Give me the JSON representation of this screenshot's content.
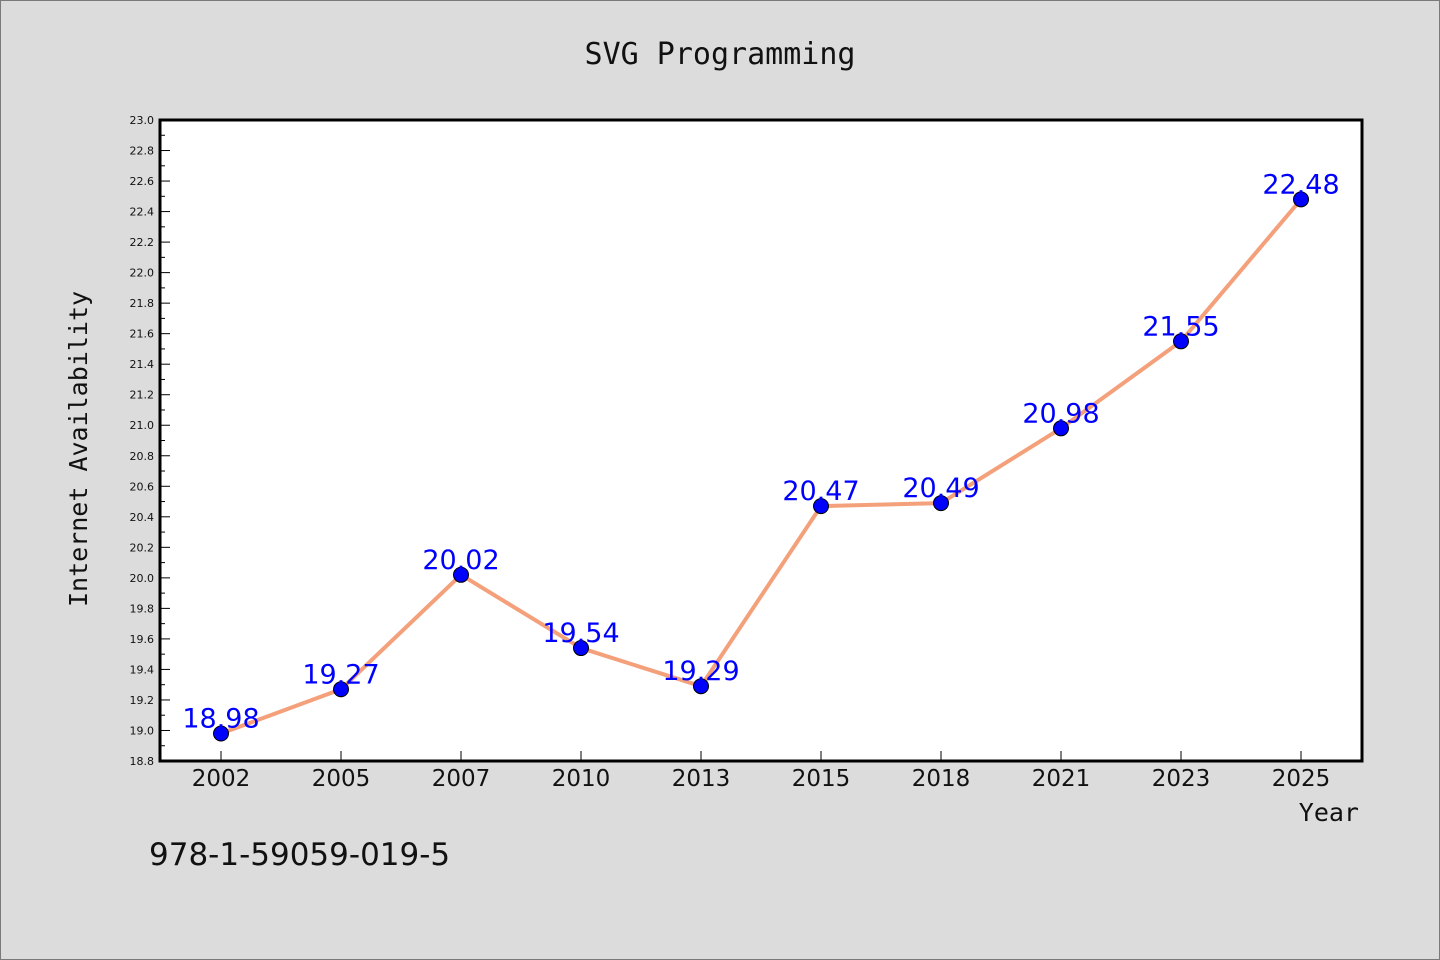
{
  "chart_data": {
    "type": "line",
    "title": "SVG Programming",
    "xlabel": "Year",
    "ylabel": "Internet Availability",
    "categories": [
      "2002",
      "2005",
      "2007",
      "2010",
      "2013",
      "2015",
      "2018",
      "2021",
      "2023",
      "2025"
    ],
    "values": [
      18.98,
      19.27,
      20.02,
      19.54,
      19.29,
      20.47,
      20.49,
      20.98,
      21.55,
      22.48
    ],
    "data_labels": [
      "18.98",
      "19.27",
      "20.02",
      "19.54",
      "19.29",
      "20.47",
      "20.49",
      "20.98",
      "21.55",
      "22.48"
    ],
    "ylim": [
      18.8,
      23.0
    ],
    "yticks": [
      "18.8",
      "19.0",
      "19.2",
      "19.4",
      "19.6",
      "19.8",
      "20.0",
      "20.2",
      "20.4",
      "20.6",
      "20.8",
      "21.0",
      "21.2",
      "21.4",
      "21.6",
      "21.8",
      "22.0",
      "22.2",
      "22.4",
      "22.6",
      "22.8",
      "23.0"
    ],
    "grid": false,
    "line_color": "#f4a07a",
    "marker_color": "#0000ff",
    "label_color": "#0000ff"
  },
  "footer_text": "978-1-59059-019-5"
}
